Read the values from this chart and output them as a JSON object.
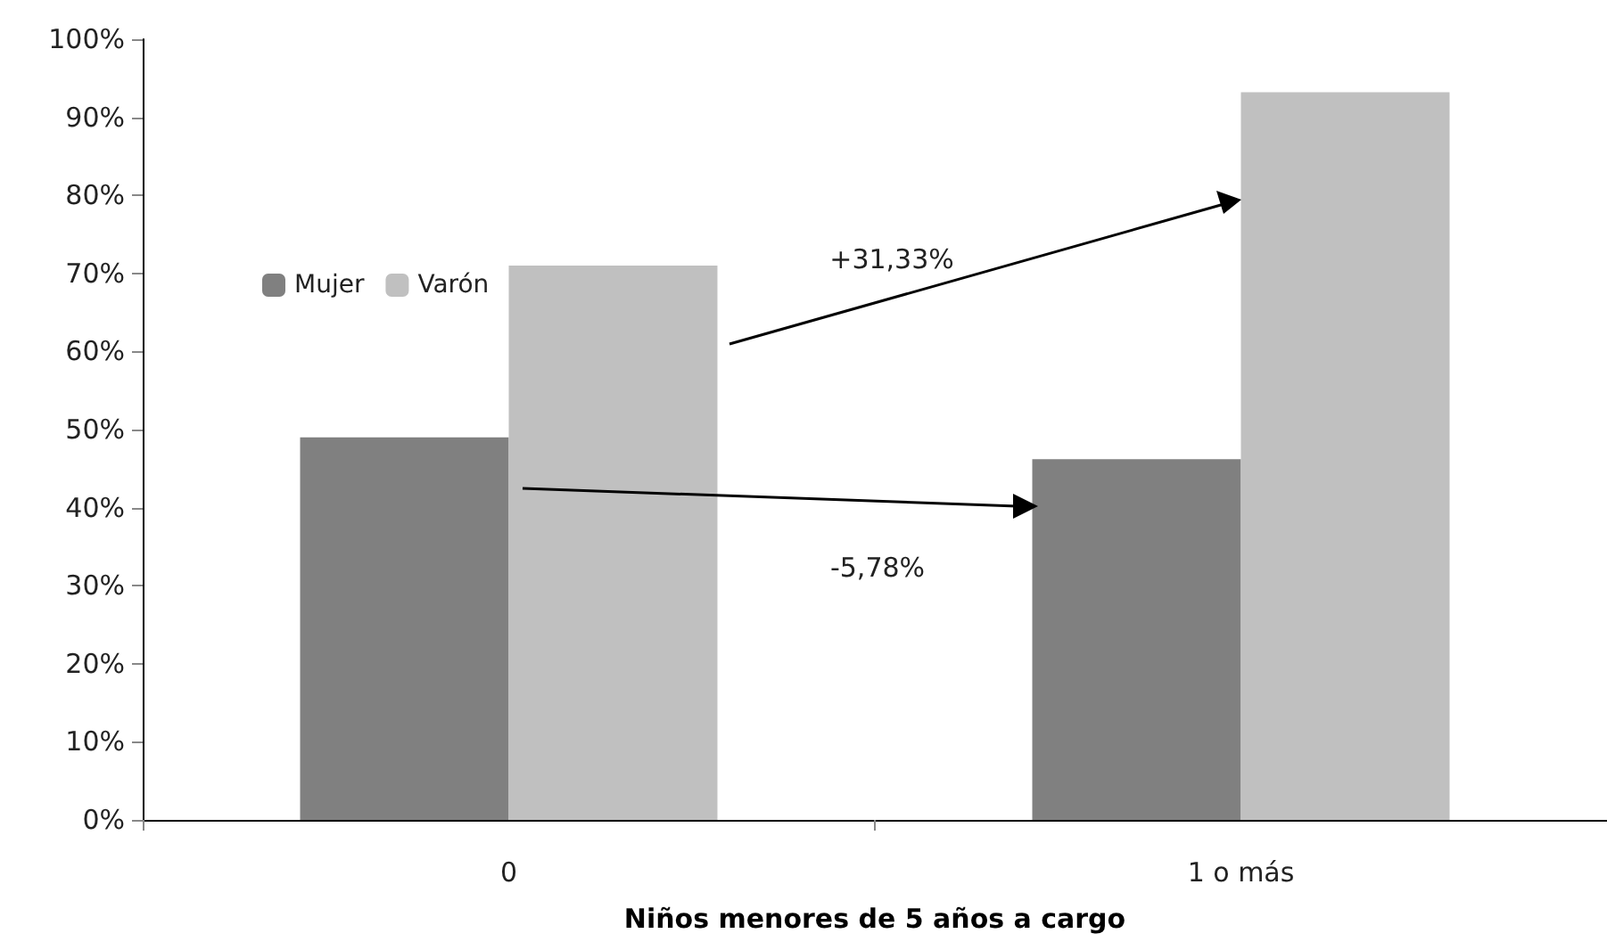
{
  "chart_data": {
    "type": "bar",
    "xlabel": "Niños menores de 5 años a cargo",
    "categories": [
      "0",
      "1 o más"
    ],
    "series": [
      {
        "name": "Mujer",
        "color": "#808080",
        "values": [
          49,
          46.2
        ]
      },
      {
        "name": "Varón",
        "color": "#c0c0c0",
        "values": [
          71,
          93.2
        ]
      }
    ],
    "ylim": [
      0,
      100
    ],
    "yticks": [
      {
        "value": 0,
        "label": "0%"
      },
      {
        "value": 10,
        "label": "10%"
      },
      {
        "value": 20,
        "label": "20%"
      },
      {
        "value": 30,
        "label": "30%"
      },
      {
        "value": 40,
        "label": "40%"
      },
      {
        "value": 50,
        "label": "50%"
      },
      {
        "value": 60,
        "label": "60%"
      },
      {
        "value": 70,
        "label": "70%"
      },
      {
        "value": 80,
        "label": "80%"
      },
      {
        "value": 90,
        "label": "90%"
      },
      {
        "value": 100,
        "label": "100%"
      }
    ],
    "annotations": [
      "+31,33%",
      "-5,78%"
    ],
    "grid": false,
    "legend": "top left"
  }
}
